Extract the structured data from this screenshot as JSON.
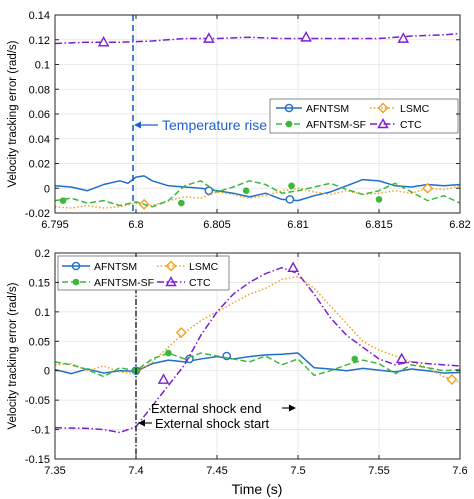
{
  "chart_data": [
    {
      "type": "line",
      "ylabel": "Velocity tracking error (rad/s)",
      "xlim": [
        6.795,
        6.82
      ],
      "ylim": [
        -0.02,
        0.14
      ],
      "xticks": [
        6.795,
        6.8,
        6.805,
        6.81,
        6.815,
        6.82
      ],
      "xtick_labels": [
        "6.795",
        "6.8",
        "6.805",
        "6.81",
        "6.815",
        "6.82"
      ],
      "yticks": [
        -0.02,
        0,
        0.02,
        0.04,
        0.06,
        0.08,
        0.1,
        0.12,
        0.14
      ],
      "ytick_labels": [
        "-0.02",
        "0",
        "0.02",
        "0.04",
        "0.06",
        "0.08",
        "0.1",
        "0.12",
        "0.14"
      ],
      "legend": {
        "position": "right",
        "entries": [
          "AFNTSM",
          "LSMC",
          "AFNTSM-SF",
          "CTC"
        ]
      },
      "annotations": [
        {
          "text": "Temperature rise",
          "x": 6.8
        }
      ],
      "series": [
        {
          "name": "AFNTSM",
          "color": "#1f6fc8",
          "style": "solid",
          "marker": "circle",
          "x": [
            6.795,
            6.796,
            6.797,
            6.798,
            6.799,
            6.7995,
            6.8,
            6.8005,
            6.801,
            6.802,
            6.803,
            6.804,
            6.805,
            6.806,
            6.807,
            6.808,
            6.809,
            6.81,
            6.811,
            6.812,
            6.813,
            6.814,
            6.815,
            6.816,
            6.817,
            6.818,
            6.819,
            6.82
          ],
          "y": [
            0.002,
            0.001,
            -0.002,
            0.003,
            0.006,
            0.004,
            0.009,
            0.01,
            0.006,
            0.002,
            0.001,
            0.0,
            -0.002,
            -0.004,
            -0.007,
            -0.004,
            -0.009,
            -0.01,
            -0.006,
            -0.003,
            0.002,
            0.007,
            0.006,
            0.002,
            0.001,
            0.003,
            0.002,
            0.003
          ],
          "marker_x": [
            6.8045,
            6.8095
          ],
          "marker_y": [
            -0.002,
            -0.009
          ]
        },
        {
          "name": "LSMC",
          "color": "#f2a020",
          "style": "dotted",
          "marker": "diamond",
          "x": [
            6.795,
            6.796,
            6.797,
            6.798,
            6.799,
            6.8,
            6.8005,
            6.801,
            6.802,
            6.803,
            6.804,
            6.805,
            6.806,
            6.807,
            6.808,
            6.809,
            6.81,
            6.811,
            6.812,
            6.813,
            6.814,
            6.815,
            6.816,
            6.817,
            6.818,
            6.819,
            6.82
          ],
          "y": [
            -0.015,
            -0.016,
            -0.014,
            -0.016,
            -0.015,
            -0.012,
            -0.013,
            -0.014,
            -0.01,
            -0.007,
            -0.008,
            -0.003,
            -0.005,
            -0.008,
            -0.006,
            -0.002,
            0.0,
            -0.003,
            -0.005,
            -0.002,
            -0.005,
            -0.004,
            -0.002,
            -0.004,
            0.0,
            -0.001,
            0.002
          ],
          "marker_x": [
            6.8005,
            6.818
          ],
          "marker_y": [
            -0.013,
            0.0
          ]
        },
        {
          "name": "AFNTSM-SF",
          "color": "#3cb83c",
          "style": "dashed",
          "marker": "dot",
          "x": [
            6.795,
            6.796,
            6.797,
            6.798,
            6.799,
            6.8,
            6.801,
            6.802,
            6.803,
            6.804,
            6.805,
            6.806,
            6.807,
            6.808,
            6.809,
            6.81,
            6.811,
            6.812,
            6.813,
            6.814,
            6.815,
            6.816,
            6.817,
            6.818,
            6.819,
            6.82
          ],
          "y": [
            -0.01,
            -0.008,
            -0.012,
            -0.01,
            -0.014,
            -0.011,
            -0.015,
            -0.01,
            0.002,
            0.006,
            -0.003,
            0.001,
            0.006,
            0.003,
            -0.004,
            -0.002,
            0.001,
            0.004,
            -0.001,
            -0.005,
            -0.002,
            0.004,
            -0.003,
            -0.01,
            -0.006,
            -0.012
          ],
          "marker_x": [
            6.7955,
            6.8028,
            6.8068,
            6.8096,
            6.815
          ],
          "marker_y": [
            -0.01,
            -0.012,
            -0.002,
            0.002,
            -0.009
          ]
        },
        {
          "name": "CTC",
          "color": "#7a1fd1",
          "style": "dashdot",
          "marker": "triangle",
          "x": [
            6.795,
            6.797,
            6.799,
            6.801,
            6.803,
            6.805,
            6.807,
            6.809,
            6.811,
            6.813,
            6.815,
            6.817,
            6.819,
            6.82
          ],
          "y": [
            0.117,
            0.118,
            0.118,
            0.119,
            0.121,
            0.121,
            0.122,
            0.121,
            0.121,
            0.121,
            0.121,
            0.123,
            0.124,
            0.125
          ],
          "marker_x": [
            6.798,
            6.8045,
            6.8105,
            6.8165
          ],
          "marker_y": [
            0.118,
            0.121,
            0.122,
            0.121
          ]
        }
      ]
    },
    {
      "type": "line",
      "xlabel": "Time (s)",
      "ylabel": "Velocity tracking error (rad/s)",
      "xlim": [
        7.35,
        7.6
      ],
      "ylim": [
        -0.15,
        0.2
      ],
      "xticks": [
        7.35,
        7.4,
        7.45,
        7.5,
        7.55,
        7.6
      ],
      "xtick_labels": [
        "7.35",
        "7.4",
        "7.45",
        "7.5",
        "7.55",
        "7.6"
      ],
      "yticks": [
        -0.15,
        -0.1,
        -0.05,
        0,
        0.05,
        0.1,
        0.15,
        0.2
      ],
      "ytick_labels": [
        "-0.15",
        "-0.1",
        "-0.05",
        "0",
        "0.05",
        "0.1",
        "0.15",
        "0.2"
      ],
      "legend": {
        "position": "top",
        "entries": [
          "AFNTSM",
          "LSMC",
          "AFNTSM-SF",
          "CTC"
        ]
      },
      "annotations": [
        {
          "text": "External shock end"
        },
        {
          "text": "External shock start",
          "x": 7.4
        }
      ],
      "series": [
        {
          "name": "AFNTSM",
          "color": "#1f6fc8",
          "style": "solid",
          "marker": "circle",
          "x": [
            7.35,
            7.36,
            7.37,
            7.38,
            7.39,
            7.4,
            7.41,
            7.42,
            7.43,
            7.44,
            7.45,
            7.46,
            7.47,
            7.48,
            7.49,
            7.5,
            7.51,
            7.52,
            7.53,
            7.54,
            7.55,
            7.56,
            7.57,
            7.58,
            7.59,
            7.6
          ],
          "y": [
            0.002,
            -0.005,
            0.003,
            -0.004,
            0.0,
            -0.001,
            0.012,
            0.018,
            0.015,
            0.02,
            0.024,
            0.02,
            0.024,
            0.027,
            0.028,
            0.03,
            0.005,
            0.003,
            0.0,
            0.004,
            0.001,
            -0.002,
            0.003,
            0.0,
            -0.004,
            -0.003
          ],
          "marker_x": [
            7.4,
            7.433,
            7.456
          ],
          "marker_y": [
            0.0,
            0.02,
            0.025
          ]
        },
        {
          "name": "LSMC",
          "color": "#f2a020",
          "style": "dotted",
          "marker": "diamond",
          "x": [
            7.35,
            7.36,
            7.37,
            7.38,
            7.39,
            7.4,
            7.41,
            7.42,
            7.43,
            7.44,
            7.45,
            7.46,
            7.47,
            7.48,
            7.49,
            7.5,
            7.51,
            7.52,
            7.53,
            7.54,
            7.55,
            7.56,
            7.57,
            7.58,
            7.59,
            7.6
          ],
          "y": [
            0.01,
            0.012,
            0.0,
            0.008,
            -0.002,
            -0.005,
            0.015,
            0.04,
            0.065,
            0.085,
            0.1,
            0.115,
            0.13,
            0.14,
            0.155,
            0.16,
            0.14,
            0.11,
            0.08,
            0.05,
            0.035,
            0.025,
            0.015,
            0.005,
            -0.01,
            -0.02
          ],
          "marker_x": [
            7.428,
            7.595
          ],
          "marker_y": [
            0.065,
            -0.015
          ]
        },
        {
          "name": "AFNTSM-SF",
          "color": "#3cb83c",
          "style": "dashed",
          "marker": "dot",
          "x": [
            7.35,
            7.36,
            7.37,
            7.38,
            7.39,
            7.4,
            7.41,
            7.42,
            7.43,
            7.44,
            7.45,
            7.46,
            7.47,
            7.48,
            7.49,
            7.5,
            7.51,
            7.52,
            7.53,
            7.54,
            7.55,
            7.56,
            7.57,
            7.58,
            7.59,
            7.6
          ],
          "y": [
            0.015,
            0.01,
            0.002,
            -0.01,
            0.005,
            0.0,
            0.02,
            0.03,
            0.02,
            0.03,
            0.025,
            0.02,
            0.015,
            0.025,
            0.01,
            0.02,
            -0.008,
            0.0,
            0.01,
            0.018,
            0.012,
            -0.005,
            0.01,
            0.005,
            0.0,
            0.002
          ],
          "marker_x": [
            7.4,
            7.42,
            7.535
          ],
          "marker_y": [
            0.0,
            0.03,
            0.02
          ]
        },
        {
          "name": "CTC",
          "color": "#7a1fd1",
          "style": "dashdot",
          "marker": "triangle",
          "x": [
            7.35,
            7.37,
            7.38,
            7.39,
            7.4,
            7.41,
            7.42,
            7.43,
            7.44,
            7.45,
            7.46,
            7.47,
            7.48,
            7.49,
            7.5,
            7.51,
            7.52,
            7.53,
            7.54,
            7.55,
            7.56,
            7.57,
            7.58,
            7.59,
            7.6
          ],
          "y": [
            -0.097,
            -0.098,
            -0.1,
            -0.105,
            -0.095,
            -0.06,
            -0.025,
            0.01,
            0.06,
            0.1,
            0.13,
            0.15,
            0.165,
            0.175,
            0.165,
            0.13,
            0.09,
            0.06,
            0.04,
            0.02,
            0.01,
            0.015,
            0.012,
            0.01,
            0.008
          ],
          "marker_x": [
            7.417,
            7.497,
            7.564
          ],
          "marker_y": [
            -0.015,
            0.175,
            0.02
          ]
        }
      ]
    }
  ]
}
